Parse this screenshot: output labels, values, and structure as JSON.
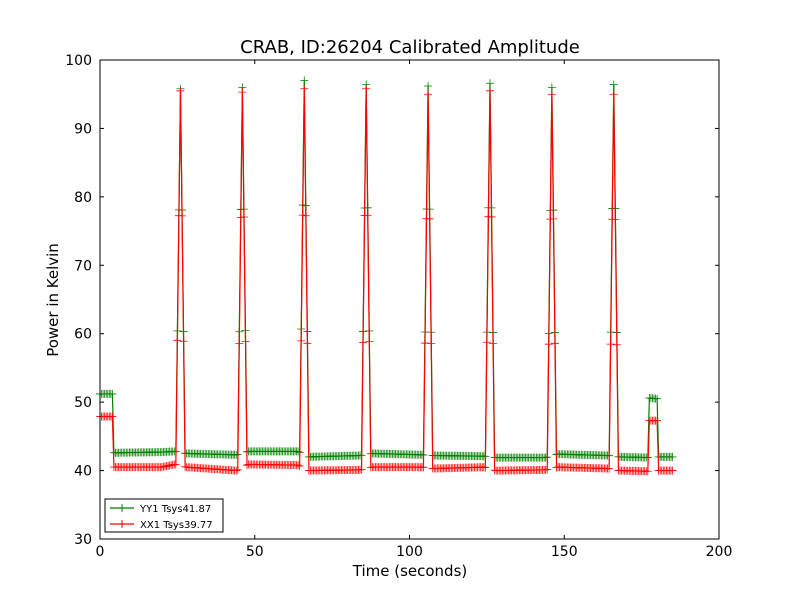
{
  "chart_data": {
    "type": "line",
    "title": "CRAB, ID:26204 Calibrated Amplitude",
    "xlabel": "Time (seconds)",
    "ylabel": "Power in Kelvin",
    "xlim": [
      0,
      200
    ],
    "ylim": [
      30,
      100
    ],
    "xticks": [
      0,
      50,
      100,
      150,
      200
    ],
    "yticks": [
      30,
      40,
      50,
      60,
      70,
      80,
      90,
      100
    ],
    "grid": false,
    "legend_position": "lower-left",
    "marker": "+",
    "series": [
      {
        "name": "YY1 Tsys41.87",
        "color": "#008000",
        "base": [
          [
            0,
            51.2
          ],
          [
            4,
            51.2
          ],
          [
            4.5,
            42.6
          ],
          [
            20,
            42.7
          ],
          [
            24,
            42.8
          ],
          [
            28,
            42.5
          ],
          [
            44,
            42.3
          ],
          [
            48,
            42.8
          ],
          [
            64,
            42.8
          ],
          [
            67,
            42.0
          ],
          [
            84,
            42.2
          ],
          [
            88,
            42.5
          ],
          [
            104,
            42.3
          ],
          [
            108,
            42.2
          ],
          [
            124,
            42.1
          ],
          [
            128,
            41.9
          ],
          [
            144,
            41.9
          ],
          [
            148,
            42.4
          ],
          [
            164,
            42.2
          ],
          [
            168,
            42.0
          ],
          [
            177,
            41.9
          ],
          [
            177.5,
            50.6
          ],
          [
            180,
            50.5
          ],
          [
            180.5,
            42.0
          ],
          [
            185,
            42.0
          ]
        ],
        "peaks": [
          {
            "t": 26,
            "v": 95.8
          },
          {
            "t": 46,
            "v": 96.0
          },
          {
            "t": 66,
            "v": 97.0
          },
          {
            "t": 86,
            "v": 96.4
          },
          {
            "t": 106,
            "v": 96.2
          },
          {
            "t": 126,
            "v": 96.6
          },
          {
            "t": 146,
            "v": 96.0
          },
          {
            "t": 166,
            "v": 96.4
          }
        ]
      },
      {
        "name": "XX1 Tsys39.77",
        "color": "#ff0000",
        "base": [
          [
            0,
            47.9
          ],
          [
            4,
            47.9
          ],
          [
            4.5,
            40.5
          ],
          [
            20,
            40.5
          ],
          [
            24,
            40.9
          ],
          [
            28,
            40.5
          ],
          [
            44,
            40.0
          ],
          [
            48,
            40.9
          ],
          [
            64,
            40.8
          ],
          [
            67,
            40.0
          ],
          [
            84,
            40.1
          ],
          [
            88,
            40.5
          ],
          [
            104,
            40.5
          ],
          [
            108,
            40.3
          ],
          [
            124,
            40.5
          ],
          [
            128,
            40.0
          ],
          [
            144,
            40.1
          ],
          [
            148,
            40.5
          ],
          [
            164,
            40.3
          ],
          [
            168,
            40.0
          ],
          [
            177,
            39.9
          ],
          [
            177.5,
            47.3
          ],
          [
            180,
            47.3
          ],
          [
            180.5,
            40.0
          ],
          [
            185,
            40.0
          ]
        ],
        "peaks": [
          {
            "t": 26,
            "v": 95.5
          },
          {
            "t": 46,
            "v": 95.3
          },
          {
            "t": 66,
            "v": 95.8
          },
          {
            "t": 86,
            "v": 95.8
          },
          {
            "t": 106,
            "v": 95.0
          },
          {
            "t": 126,
            "v": 95.5
          },
          {
            "t": 146,
            "v": 95.0
          },
          {
            "t": 166,
            "v": 95.0
          }
        ]
      }
    ]
  }
}
